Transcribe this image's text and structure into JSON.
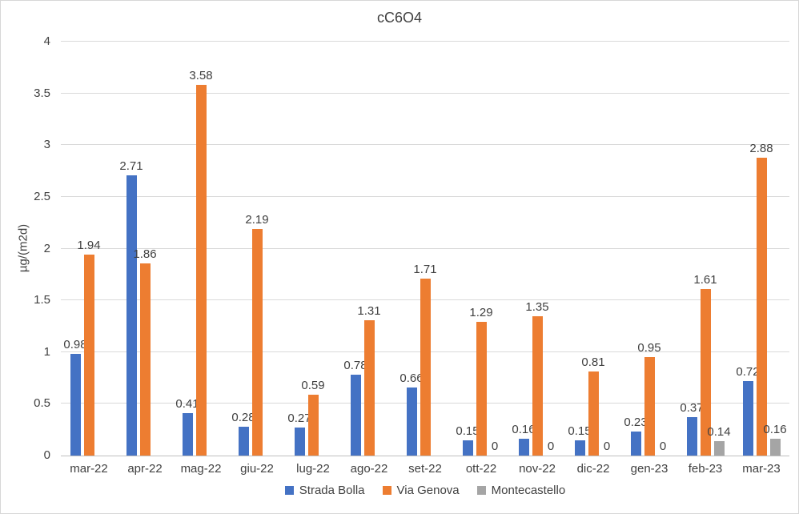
{
  "chart_data": {
    "type": "bar",
    "title": "cC6O4",
    "ylabel": "µg/(m2d)",
    "ylim": [
      0,
      4
    ],
    "yticks": [
      0,
      0.5,
      1,
      1.5,
      2,
      2.5,
      3,
      3.5,
      4
    ],
    "ytick_labels": [
      "0",
      "0.5",
      "1",
      "1.5",
      "2",
      "2.5",
      "3",
      "3.5",
      "4"
    ],
    "grid": true,
    "legend_position": "bottom",
    "categories": [
      "mar-22",
      "apr-22",
      "mag-22",
      "giu-22",
      "lug-22",
      "ago-22",
      "set-22",
      "ott-22",
      "nov-22",
      "dic-22",
      "gen-23",
      "feb-23",
      "mar-23"
    ],
    "series": [
      {
        "name": "Strada Bolla",
        "color": "#4472C4",
        "values": [
          0.98,
          2.71,
          0.41,
          0.28,
          0.27,
          0.78,
          0.66,
          0.15,
          0.16,
          0.15,
          0.23,
          0.37,
          0.72
        ],
        "labels": [
          "0.98",
          "2.71",
          "0.41",
          "0.28",
          "0.27",
          "0.78",
          "0.66",
          "0.15",
          "0.16",
          "0.15",
          "0.23",
          "0.37",
          "0.72"
        ]
      },
      {
        "name": "Via Genova",
        "color": "#ED7D31",
        "values": [
          1.94,
          1.86,
          3.58,
          2.19,
          0.59,
          1.31,
          1.71,
          1.29,
          1.35,
          0.81,
          0.95,
          1.61,
          2.88
        ],
        "labels": [
          "1.94",
          "1.86",
          "3.58",
          "2.19",
          "0.59",
          "1.31",
          "1.71",
          "1.29",
          "1.35",
          "0.81",
          "0.95",
          "1.61",
          "2.88"
        ]
      },
      {
        "name": "Montecastello",
        "color": "#A5A5A5",
        "values": [
          null,
          null,
          null,
          null,
          null,
          null,
          null,
          0,
          0,
          0,
          0,
          0.14,
          0.16
        ],
        "labels": [
          "",
          "",
          "",
          "",
          "",
          "",
          "",
          "0",
          "0",
          "0",
          "0",
          "0.14",
          "0.16"
        ]
      }
    ]
  }
}
